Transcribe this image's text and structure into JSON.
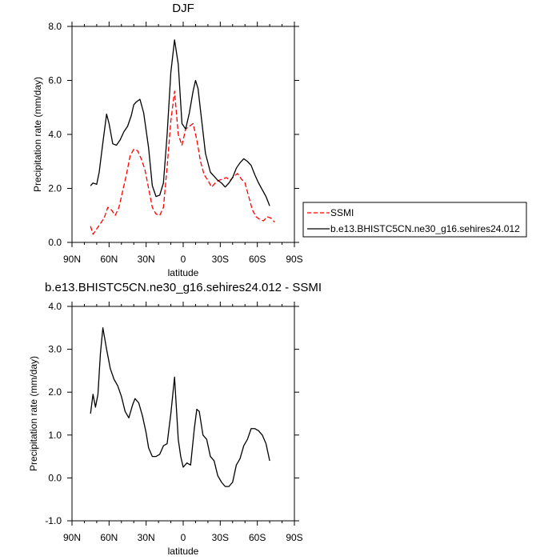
{
  "chart_data": [
    {
      "type": "line",
      "title": "DJF",
      "xlabel": "latitude",
      "ylabel": "Precipitation rate (mm/day)",
      "xlim": [
        90,
        -90
      ],
      "ylim": [
        0,
        8
      ],
      "x_ticks": [
        90,
        60,
        30,
        0,
        -30,
        -60,
        -90
      ],
      "x_tick_labels": [
        "90N",
        "60N",
        "30N",
        "0",
        "30S",
        "60S",
        "90S"
      ],
      "y_ticks": [
        0,
        2,
        4,
        6,
        8
      ],
      "y_tick_labels": [
        "0.0",
        "2.0",
        "4.0",
        "6.0",
        "8.0"
      ],
      "legend": {
        "placement": "right-outside"
      },
      "series": [
        {
          "name": "SSMI",
          "color": "#ff0000",
          "dash": "dashed",
          "x": [
            75,
            73,
            70,
            67,
            64,
            61,
            58,
            55,
            52,
            49,
            46,
            43,
            40,
            37,
            34,
            31,
            28,
            25,
            22,
            19,
            16,
            13,
            10,
            7,
            4,
            1,
            -2,
            -5,
            -8,
            -11,
            -14,
            -17,
            -20,
            -23,
            -26,
            -29,
            -32,
            -35,
            -38,
            -41,
            -44,
            -47,
            -50,
            -53,
            -56,
            -59,
            -62,
            -65,
            -68,
            -71,
            -74
          ],
          "values": [
            0.6,
            0.3,
            0.5,
            0.7,
            0.9,
            1.3,
            1.2,
            1.0,
            1.3,
            1.9,
            2.5,
            3.2,
            3.45,
            3.4,
            3.1,
            2.7,
            2.0,
            1.3,
            1.05,
            1.0,
            1.3,
            2.8,
            4.5,
            5.6,
            4.0,
            3.6,
            4.2,
            4.3,
            4.4,
            3.8,
            3.0,
            2.5,
            2.3,
            2.05,
            2.2,
            2.3,
            2.35,
            2.4,
            2.3,
            2.45,
            2.55,
            2.35,
            2.2,
            1.7,
            1.2,
            0.95,
            0.85,
            0.8,
            0.95,
            0.9,
            0.75
          ]
        },
        {
          "name": "b.e13.BHISTC5CN.ne30_g16.sehires24.012",
          "color": "#000000",
          "dash": "solid",
          "x": [
            75,
            73,
            70,
            68,
            65,
            62,
            60,
            57,
            54,
            51,
            48,
            45,
            42,
            40,
            38,
            35,
            32,
            28,
            25,
            22,
            19,
            16,
            13,
            10,
            7,
            4,
            1,
            -2,
            -5,
            -8,
            -10,
            -12,
            -15,
            -18,
            -22,
            -25,
            -28,
            -31,
            -34,
            -37,
            -40,
            -43,
            -46,
            -49,
            -52,
            -55,
            -58,
            -61,
            -64,
            -67,
            -70
          ],
          "values": [
            2.1,
            2.2,
            2.15,
            2.6,
            3.7,
            4.75,
            4.4,
            3.65,
            3.6,
            3.8,
            4.1,
            4.3,
            4.7,
            5.1,
            5.2,
            5.3,
            4.8,
            3.5,
            2.1,
            1.7,
            1.75,
            2.2,
            4.0,
            6.3,
            7.5,
            6.6,
            4.4,
            4.2,
            4.8,
            5.6,
            6.0,
            5.7,
            4.5,
            3.3,
            2.6,
            2.45,
            2.3,
            2.2,
            2.05,
            2.2,
            2.4,
            2.75,
            2.95,
            3.1,
            3.0,
            2.85,
            2.5,
            2.2,
            1.95,
            1.7,
            1.35
          ]
        }
      ]
    },
    {
      "type": "line",
      "title": "b.e13.BHISTC5CN.ne30_g16.sehires24.012 - SSMI",
      "xlabel": "latitude",
      "ylabel": "Precipitation rate (mm/day)",
      "xlim": [
        90,
        -90
      ],
      "ylim": [
        -1,
        4
      ],
      "x_ticks": [
        90,
        60,
        30,
        0,
        -30,
        -60,
        -90
      ],
      "x_tick_labels": [
        "90N",
        "60N",
        "30N",
        "0",
        "30S",
        "60S",
        "90S"
      ],
      "y_ticks": [
        -1,
        0,
        1,
        2,
        3,
        4
      ],
      "y_tick_labels": [
        "-1.0",
        "0.0",
        "1.0",
        "2.0",
        "3.0",
        "4.0"
      ],
      "series": [
        {
          "color": "#000000",
          "dash": "solid",
          "x": [
            75,
            73,
            71,
            69,
            67,
            65,
            62,
            59,
            56,
            53,
            50,
            47,
            44,
            41,
            39,
            36,
            33,
            30,
            28,
            25,
            22,
            19,
            16,
            13,
            10,
            7,
            4,
            2,
            0,
            -3,
            -6,
            -9,
            -11,
            -13,
            -16,
            -19,
            -22,
            -25,
            -28,
            -31,
            -34,
            -37,
            -40,
            -43,
            -46,
            -49,
            -52,
            -55,
            -58,
            -61,
            -64,
            -67,
            -70
          ],
          "values": [
            1.5,
            1.95,
            1.65,
            1.95,
            2.9,
            3.5,
            3.0,
            2.55,
            2.3,
            2.15,
            1.9,
            1.55,
            1.4,
            1.7,
            1.85,
            1.75,
            1.45,
            1.05,
            0.7,
            0.5,
            0.5,
            0.55,
            0.75,
            0.8,
            1.5,
            2.35,
            0.9,
            0.5,
            0.25,
            0.35,
            0.3,
            1.15,
            1.6,
            1.55,
            1.0,
            0.9,
            0.5,
            0.4,
            0.05,
            -0.1,
            -0.2,
            -0.2,
            -0.1,
            0.3,
            0.45,
            0.75,
            0.9,
            1.15,
            1.15,
            1.1,
            1.0,
            0.8,
            0.4
          ]
        }
      ]
    }
  ]
}
